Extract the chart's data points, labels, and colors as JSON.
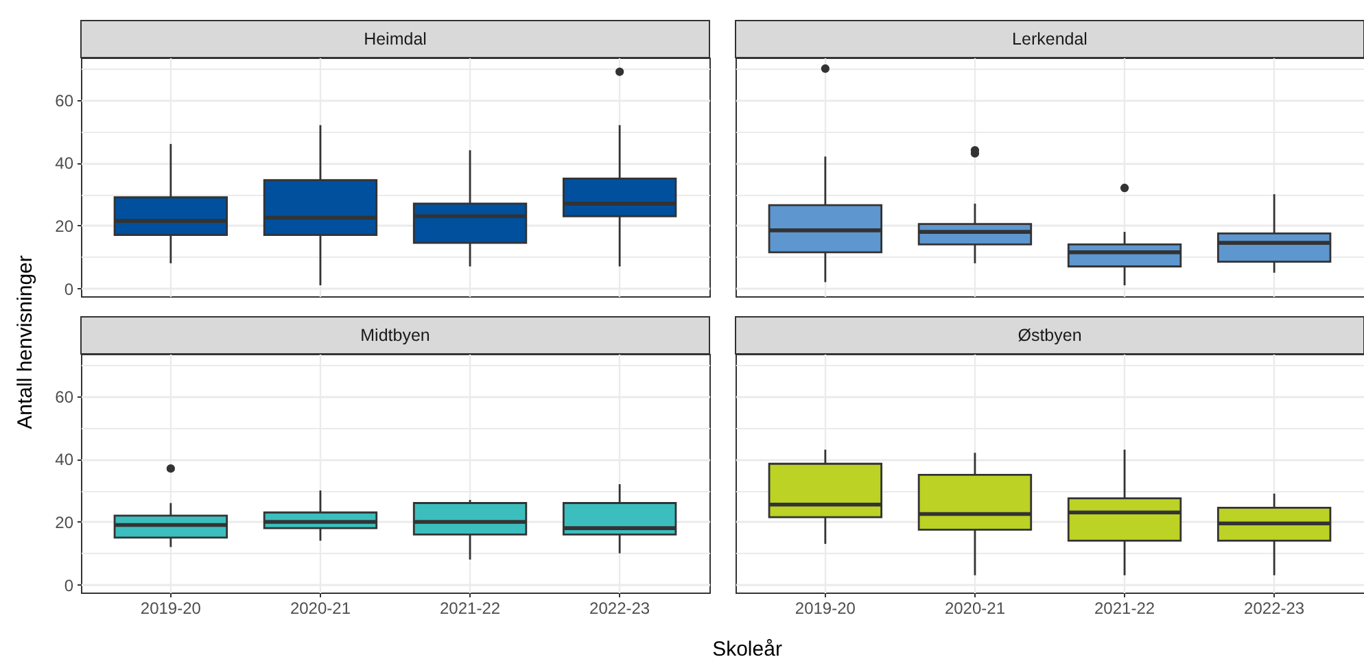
{
  "chart_data": [
    {
      "type": "box",
      "title": "Heimdal",
      "ylabel": "Antall henvisninger",
      "categories": [
        "2019-20",
        "2020-21",
        "2021-22",
        "2022-23"
      ],
      "series": [
        {
          "color": "#00509e",
          "boxes": [
            {
              "low": 8,
              "q1": 17,
              "median": 21.5,
              "q3": 29,
              "high": 46
            },
            {
              "low": 1,
              "q1": 17,
              "median": 22.5,
              "q3": 34.5,
              "high": 52
            },
            {
              "low": 7,
              "q1": 14.5,
              "median": 23,
              "q3": 27,
              "high": 44
            },
            {
              "low": 7,
              "q1": 23,
              "median": 27,
              "q3": 35,
              "high": 52,
              "outliers": [
                69
              ]
            }
          ]
        }
      ],
      "ylim": [
        -2.5,
        73.5
      ],
      "yticks": [
        0,
        {
          "value": 10,
          "label": null
        },
        20,
        {
          "value": 30,
          "label": null
        },
        40,
        {
          "value": 50,
          "label": null
        },
        60,
        {
          "value": 70,
          "label": null
        }
      ],
      "grid": true,
      "tick_labels": "y"
    },
    {
      "type": "box",
      "title": "Lerkendal",
      "categories": [
        "2019-20",
        "2020-21",
        "2021-22",
        "2022-23"
      ],
      "series": [
        {
          "color": "#5e96d0",
          "boxes": [
            {
              "low": 2,
              "q1": 11.5,
              "median": 18.5,
              "q3": 26.5,
              "high": 42,
              "outliers": [
                70
              ]
            },
            {
              "low": 8,
              "q1": 14,
              "median": 18,
              "q3": 20.5,
              "high": 27,
              "outliers": [
                43,
                44
              ]
            },
            {
              "low": 1,
              "q1": 7,
              "median": 11.5,
              "q3": 14,
              "high": 18,
              "outliers": [
                32
              ]
            },
            {
              "low": 5,
              "q1": 8.5,
              "median": 14.5,
              "q3": 17.5,
              "high": 30
            }
          ]
        }
      ],
      "ylim": [
        -2.5,
        73.5
      ],
      "yticks": [
        0,
        {
          "value": 10,
          "label": null
        },
        20,
        {
          "value": 30,
          "label": null
        },
        40,
        {
          "value": 50,
          "label": null
        },
        60,
        {
          "value": 70,
          "label": null
        }
      ],
      "grid": true,
      "tick_labels": false
    },
    {
      "type": "box",
      "title": "Midtbyen",
      "xlabel": "Skoleår",
      "categories": [
        "2019-20",
        "2020-21",
        "2021-22",
        "2022-23"
      ],
      "series": [
        {
          "color": "#3cbebe",
          "boxes": [
            {
              "low": 12,
              "q1": 15,
              "median": 19,
              "q3": 22,
              "high": 26,
              "outliers": [
                37
              ]
            },
            {
              "low": 14,
              "q1": 18,
              "median": 20,
              "q3": 23,
              "high": 30
            },
            {
              "low": 8,
              "q1": 16,
              "median": 20,
              "q3": 26,
              "high": 27
            },
            {
              "low": 10,
              "q1": 16,
              "median": 18,
              "q3": 26,
              "high": 32
            }
          ]
        }
      ],
      "ylim": [
        -2.5,
        73.5
      ],
      "yticks": [
        0,
        {
          "value": 10,
          "label": null
        },
        20,
        {
          "value": 30,
          "label": null
        },
        40,
        {
          "value": 50,
          "label": null
        },
        60,
        {
          "value": 70,
          "label": null
        }
      ],
      "grid": true
    },
    {
      "type": "box",
      "title": "Østbyen",
      "categories": [
        "2019-20",
        "2020-21",
        "2021-22",
        "2022-23"
      ],
      "series": [
        {
          "color": "#bcd224",
          "boxes": [
            {
              "low": 13,
              "q1": 21.5,
              "median": 25.5,
              "q3": 38.5,
              "high": 43
            },
            {
              "low": 3,
              "q1": 17.5,
              "median": 22.5,
              "q3": 35,
              "high": 42
            },
            {
              "low": 3,
              "q1": 14,
              "median": 23,
              "q3": 27.5,
              "high": 43
            },
            {
              "low": 3,
              "q1": 14,
              "median": 19.5,
              "q3": 24.5,
              "high": 29
            }
          ]
        }
      ],
      "ylim": [
        -2.5,
        73.5
      ],
      "yticks": [
        0,
        {
          "value": 10,
          "label": null
        },
        20,
        {
          "value": 30,
          "label": null
        },
        40,
        {
          "value": 50,
          "label": null
        },
        60,
        {
          "value": 70,
          "label": null
        }
      ],
      "grid": true,
      "tick_labels": "x"
    }
  ]
}
